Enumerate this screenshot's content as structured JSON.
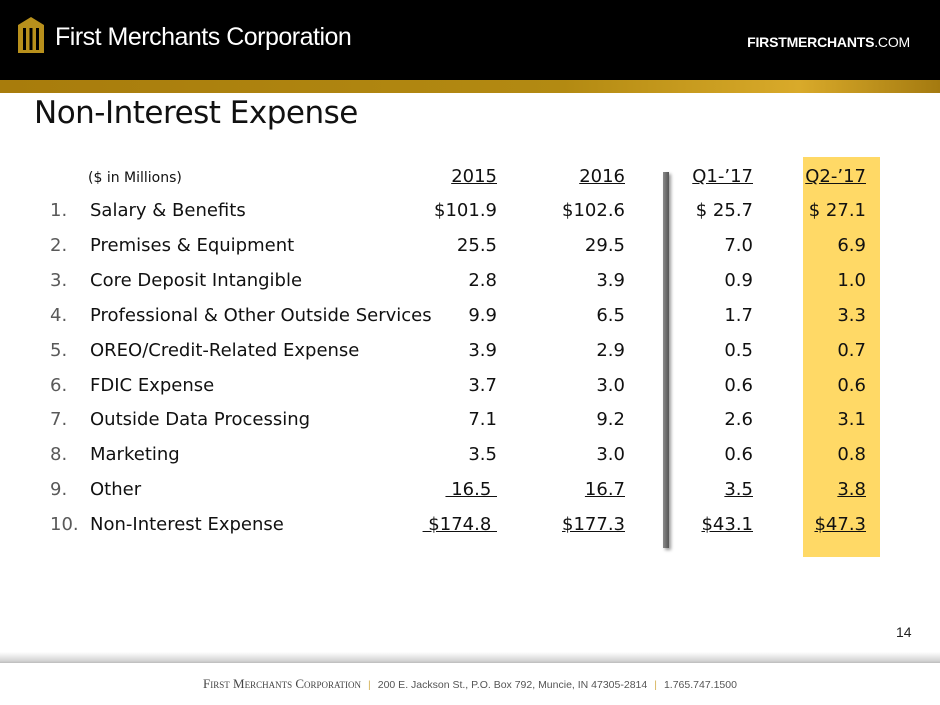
{
  "header": {
    "company": "First Merchants Corporation",
    "site_bold": "FIRSTMERCHANTS",
    "site_rest": ".COM"
  },
  "title": "Non-Interest Expense",
  "table": {
    "unit_label": "($ in Millions)",
    "columns": [
      "2015",
      "2016",
      "Q1-’17",
      "Q2-’17"
    ],
    "rows": [
      {
        "num": "1.",
        "label": "Salary & Benefits",
        "values": [
          "$101.9",
          "$102.6",
          "$ 25.7",
          "$ 27.1"
        ]
      },
      {
        "num": "2.",
        "label": "Premises & Equipment",
        "values": [
          "25.5",
          "29.5",
          "7.0",
          "6.9"
        ]
      },
      {
        "num": "3.",
        "label": "Core Deposit Intangible",
        "values": [
          "2.8",
          "3.9",
          "0.9",
          "1.0"
        ]
      },
      {
        "num": "4.",
        "label": "Professional & Other Outside Services",
        "values": [
          "9.9",
          "6.5",
          "1.7",
          "3.3"
        ]
      },
      {
        "num": "5.",
        "label": "OREO/Credit-Related Expense",
        "values": [
          "3.9",
          "2.9",
          "0.5",
          "0.7"
        ]
      },
      {
        "num": "6.",
        "label": "FDIC Expense",
        "values": [
          "3.7",
          "3.0",
          "0.6",
          "0.6"
        ]
      },
      {
        "num": "7.",
        "label": "Outside Data Processing",
        "values": [
          "7.1",
          "9.2",
          "2.6",
          "3.1"
        ]
      },
      {
        "num": "8.",
        "label": "Marketing",
        "values": [
          "3.5",
          "3.0",
          "0.6",
          "0.8"
        ]
      },
      {
        "num": "9.",
        "label": "Other",
        "values": [
          " 16.5 ",
          "16.7",
          "3.5",
          "3.8"
        ]
      },
      {
        "num": "10.",
        "label": "Non-Interest Expense",
        "values": [
          " $174.8 ",
          "$177.3",
          "$43.1",
          "$47.3"
        ]
      }
    ],
    "highlight_color": "#ffd966"
  },
  "page_number": "14",
  "footer": {
    "company": "First Merchants Corporation",
    "address": "200 E. Jackson St., P.O. Box 792, Muncie, IN 47305-2814",
    "phone": "1.765.747.1500"
  }
}
